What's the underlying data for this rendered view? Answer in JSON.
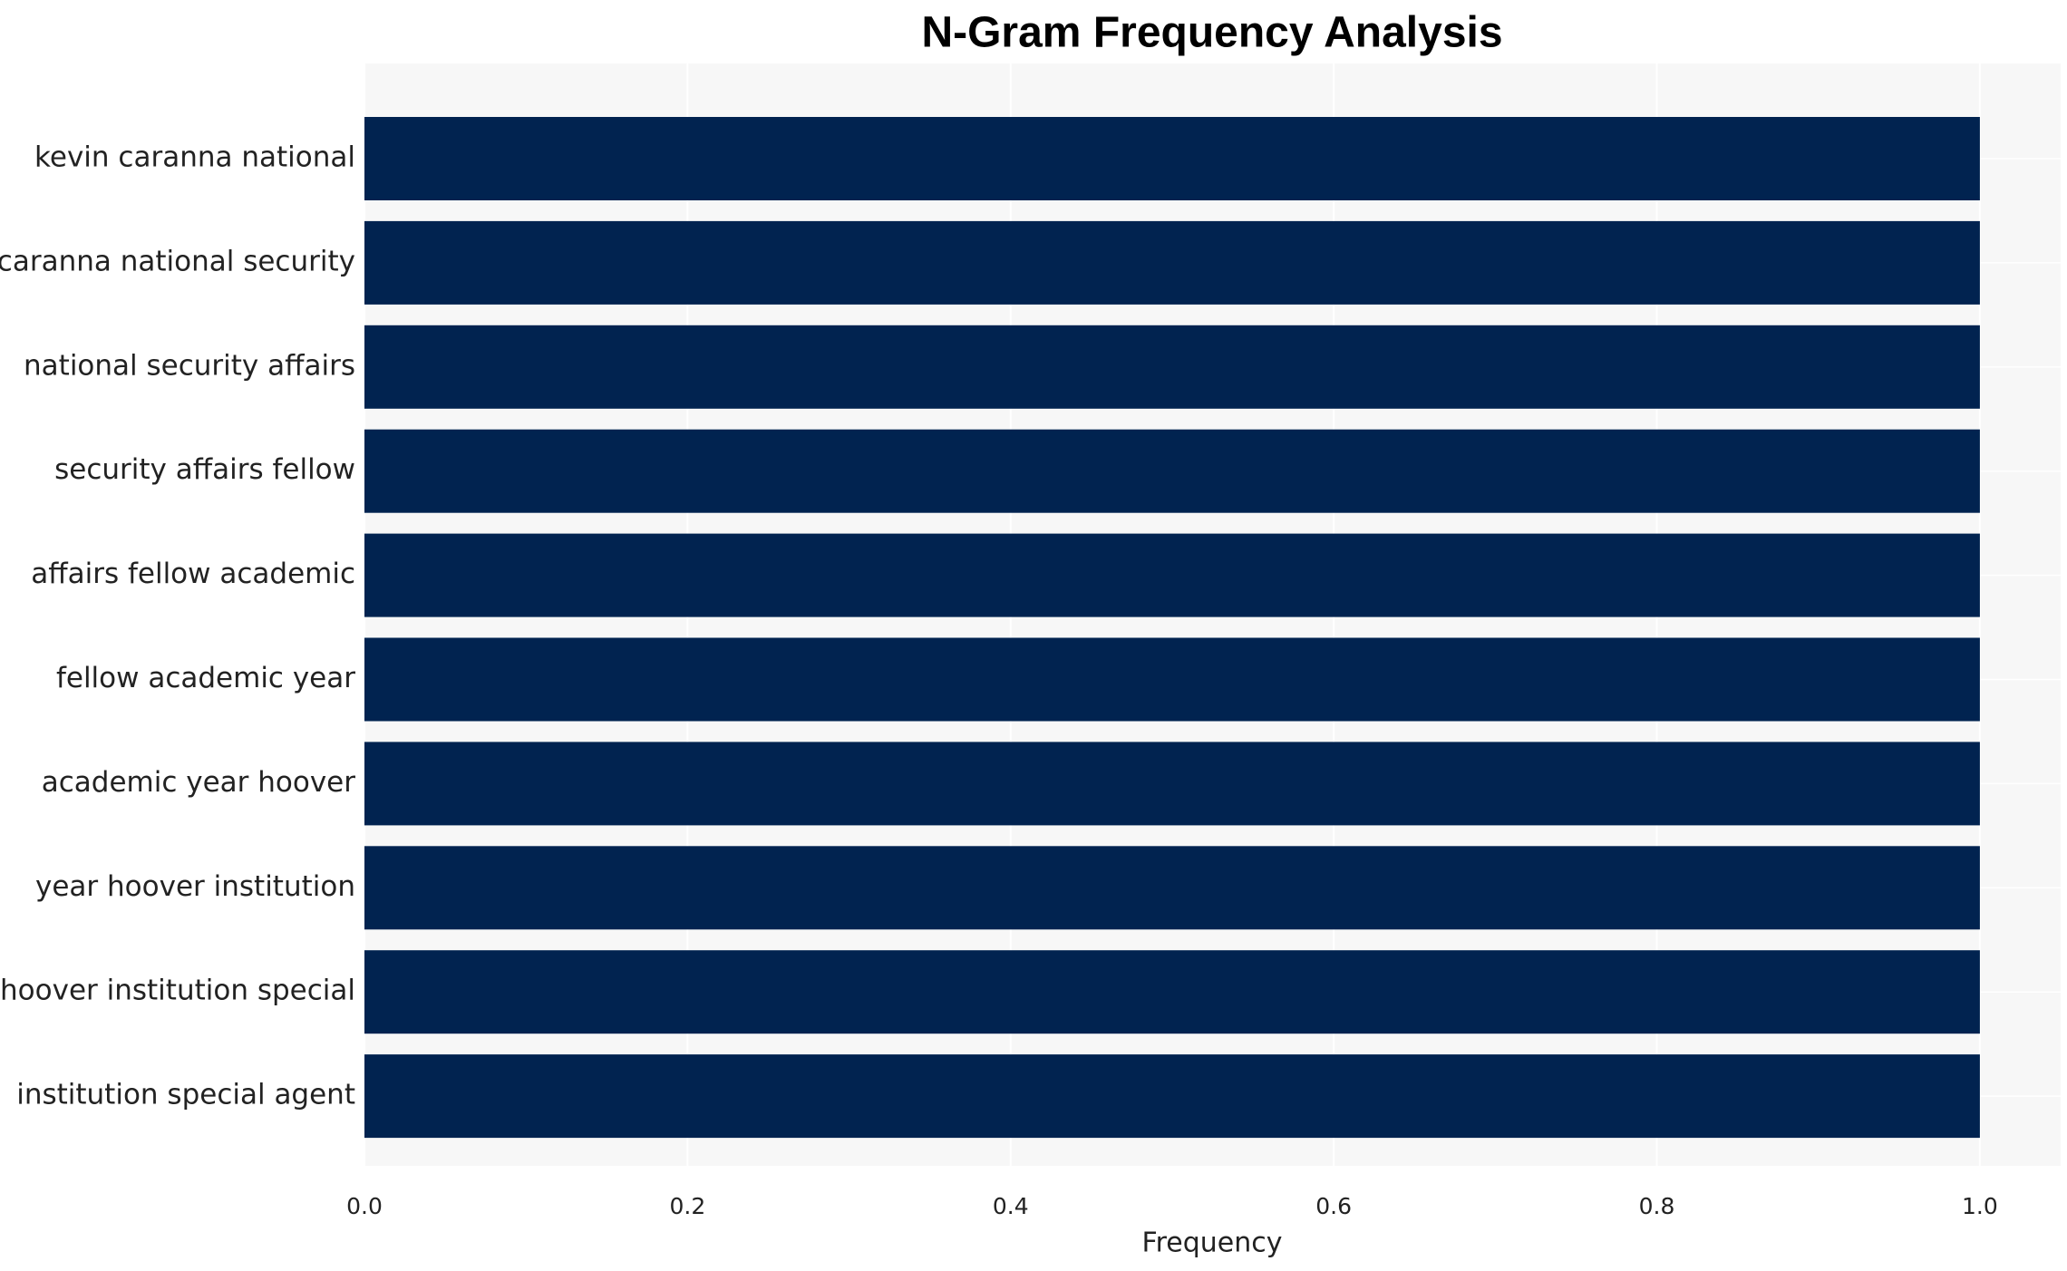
{
  "chart_data": {
    "type": "bar",
    "orientation": "horizontal",
    "title": "N-Gram Frequency Analysis",
    "x_label": "Frequency",
    "categories": [
      "kevin caranna national",
      "caranna national security",
      "national security affairs",
      "security affairs fellow",
      "affairs fellow academic",
      "fellow academic year",
      "academic year hoover",
      "year hoover institution",
      "hoover institution special",
      "institution special agent"
    ],
    "values": [
      1,
      1,
      1,
      1,
      1,
      1,
      1,
      1,
      1,
      1
    ],
    "color": "#012350",
    "xlim": [
      0,
      1.05
    ],
    "xticks": [
      {
        "value": 0,
        "label": "0.0"
      },
      0.2,
      0.4,
      0.6,
      0.8,
      {
        "value": 1,
        "label": "1.0"
      }
    ],
    "grid": true
  }
}
